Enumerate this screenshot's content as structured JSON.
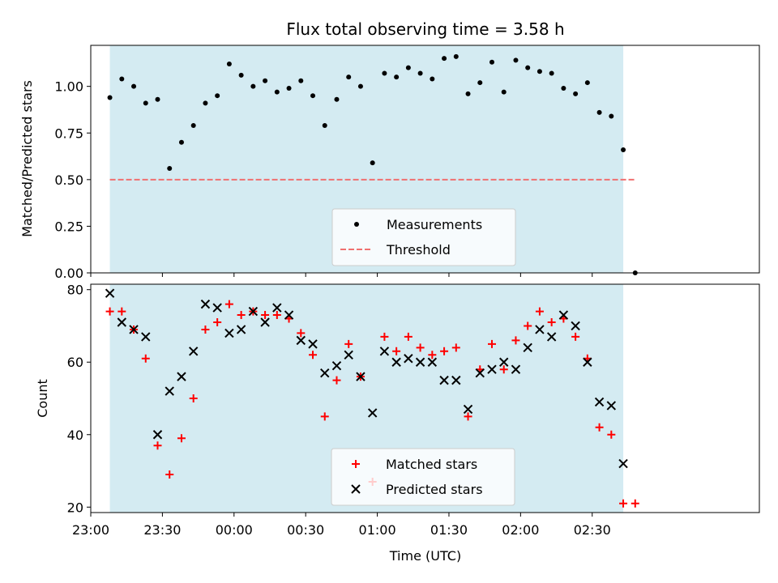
{
  "chart_data": [
    {
      "type": "scatter",
      "title": "Flux total observing time = 3.58 h",
      "ylabel": "Matched/Predicted stars",
      "xlabel": "",
      "ylim": [
        0,
        1.22
      ],
      "yticks": [
        "0.00",
        "0.25",
        "0.50",
        "0.75",
        "1.00"
      ],
      "ytick_values": [
        0,
        0.25,
        0.5,
        0.75,
        1.0
      ],
      "observing_window": [
        "23:08",
        "02:43"
      ],
      "threshold": 0.5,
      "series": [
        {
          "name": "Measurements",
          "marker": "dot",
          "color": "#000000",
          "points": [
            [
              "23:08",
              0.94
            ],
            [
              "23:13",
              1.04
            ],
            [
              "23:18",
              1.0
            ],
            [
              "23:23",
              0.91
            ],
            [
              "23:28",
              0.93
            ],
            [
              "23:33",
              0.56
            ],
            [
              "23:38",
              0.7
            ],
            [
              "23:43",
              0.79
            ],
            [
              "23:48",
              0.91
            ],
            [
              "23:53",
              0.95
            ],
            [
              "23:58",
              1.12
            ],
            [
              "00:03",
              1.06
            ],
            [
              "00:08",
              1.0
            ],
            [
              "00:13",
              1.03
            ],
            [
              "00:18",
              0.97
            ],
            [
              "00:23",
              0.99
            ],
            [
              "00:28",
              1.03
            ],
            [
              "00:33",
              0.95
            ],
            [
              "00:38",
              0.79
            ],
            [
              "00:43",
              0.93
            ],
            [
              "00:48",
              1.05
            ],
            [
              "00:53",
              1.0
            ],
            [
              "00:58",
              0.59
            ],
            [
              "01:03",
              1.07
            ],
            [
              "01:08",
              1.05
            ],
            [
              "01:13",
              1.1
            ],
            [
              "01:18",
              1.07
            ],
            [
              "01:23",
              1.04
            ],
            [
              "01:28",
              1.15
            ],
            [
              "01:33",
              1.16
            ],
            [
              "01:38",
              0.96
            ],
            [
              "01:43",
              1.02
            ],
            [
              "01:48",
              1.13
            ],
            [
              "01:53",
              0.97
            ],
            [
              "01:58",
              1.14
            ],
            [
              "02:03",
              1.1
            ],
            [
              "02:08",
              1.08
            ],
            [
              "02:13",
              1.07
            ],
            [
              "02:18",
              0.99
            ],
            [
              "02:23",
              0.96
            ],
            [
              "02:28",
              1.02
            ],
            [
              "02:33",
              0.86
            ],
            [
              "02:38",
              0.84
            ],
            [
              "02:43",
              0.66
            ],
            [
              "02:48",
              0.0
            ]
          ]
        },
        {
          "name": "Threshold",
          "type": "line",
          "style": "dashed",
          "color": "#f07070",
          "points": [
            [
              "23:08",
              0.5
            ],
            [
              "02:48",
              0.5
            ]
          ]
        }
      ],
      "shaded_color": "#add8e6",
      "legend": "lower-center"
    },
    {
      "type": "scatter",
      "title": "",
      "xlabel": "Time (UTC)",
      "ylabel": "Count",
      "ylim": [
        18.5,
        81.5
      ],
      "yticks": [
        "20",
        "40",
        "60",
        "80"
      ],
      "ytick_values": [
        20,
        40,
        60,
        80
      ],
      "xticks": [
        "23:00",
        "23:30",
        "00:00",
        "00:30",
        "01:00",
        "01:30",
        "02:00",
        "02:30"
      ],
      "observing_window": [
        "23:08",
        "02:43"
      ],
      "series": [
        {
          "name": "Matched stars",
          "marker": "plus",
          "color": "#ff0000",
          "points": [
            [
              "23:08",
              74
            ],
            [
              "23:13",
              74
            ],
            [
              "23:18",
              69
            ],
            [
              "23:23",
              61
            ],
            [
              "23:28",
              37
            ],
            [
              "23:33",
              29
            ],
            [
              "23:38",
              39
            ],
            [
              "23:43",
              50
            ],
            [
              "23:48",
              69
            ],
            [
              "23:53",
              71
            ],
            [
              "23:58",
              76
            ],
            [
              "00:03",
              73
            ],
            [
              "00:08",
              74
            ],
            [
              "00:13",
              73
            ],
            [
              "00:18",
              73
            ],
            [
              "00:23",
              72
            ],
            [
              "00:28",
              68
            ],
            [
              "00:33",
              62
            ],
            [
              "00:38",
              45
            ],
            [
              "00:43",
              55
            ],
            [
              "00:48",
              65
            ],
            [
              "00:53",
              56
            ],
            [
              "00:58",
              27
            ],
            [
              "01:03",
              67
            ],
            [
              "01:08",
              63
            ],
            [
              "01:13",
              67
            ],
            [
              "01:18",
              64
            ],
            [
              "01:23",
              62
            ],
            [
              "01:28",
              63
            ],
            [
              "01:33",
              64
            ],
            [
              "01:38",
              45
            ],
            [
              "01:43",
              58
            ],
            [
              "01:48",
              65
            ],
            [
              "01:53",
              58
            ],
            [
              "01:58",
              66
            ],
            [
              "02:03",
              70
            ],
            [
              "02:08",
              74
            ],
            [
              "02:13",
              71
            ],
            [
              "02:18",
              72
            ],
            [
              "02:23",
              67
            ],
            [
              "02:28",
              61
            ],
            [
              "02:33",
              42
            ],
            [
              "02:38",
              40
            ],
            [
              "02:43",
              21
            ],
            [
              "02:48",
              21
            ]
          ]
        },
        {
          "name": "Predicted stars",
          "marker": "x",
          "color": "#000000",
          "points": [
            [
              "23:08",
              79
            ],
            [
              "23:13",
              71
            ],
            [
              "23:18",
              69
            ],
            [
              "23:23",
              67
            ],
            [
              "23:28",
              40
            ],
            [
              "23:33",
              52
            ],
            [
              "23:38",
              56
            ],
            [
              "23:43",
              63
            ],
            [
              "23:48",
              76
            ],
            [
              "23:53",
              75
            ],
            [
              "23:58",
              68
            ],
            [
              "00:03",
              69
            ],
            [
              "00:08",
              74
            ],
            [
              "00:13",
              71
            ],
            [
              "00:18",
              75
            ],
            [
              "00:23",
              73
            ],
            [
              "00:28",
              66
            ],
            [
              "00:33",
              65
            ],
            [
              "00:38",
              57
            ],
            [
              "00:43",
              59
            ],
            [
              "00:48",
              62
            ],
            [
              "00:53",
              56
            ],
            [
              "00:58",
              46
            ],
            [
              "01:03",
              63
            ],
            [
              "01:08",
              60
            ],
            [
              "01:13",
              61
            ],
            [
              "01:18",
              60
            ],
            [
              "01:23",
              60
            ],
            [
              "01:28",
              55
            ],
            [
              "01:33",
              55
            ],
            [
              "01:38",
              47
            ],
            [
              "01:43",
              57
            ],
            [
              "01:48",
              58
            ],
            [
              "01:53",
              60
            ],
            [
              "01:58",
              58
            ],
            [
              "02:03",
              64
            ],
            [
              "02:08",
              69
            ],
            [
              "02:13",
              67
            ],
            [
              "02:18",
              73
            ],
            [
              "02:23",
              70
            ],
            [
              "02:28",
              60
            ],
            [
              "02:33",
              49
            ],
            [
              "02:38",
              48
            ],
            [
              "02:43",
              32
            ]
          ]
        }
      ],
      "shaded_color": "#add8e6",
      "legend": "lower-center"
    }
  ]
}
